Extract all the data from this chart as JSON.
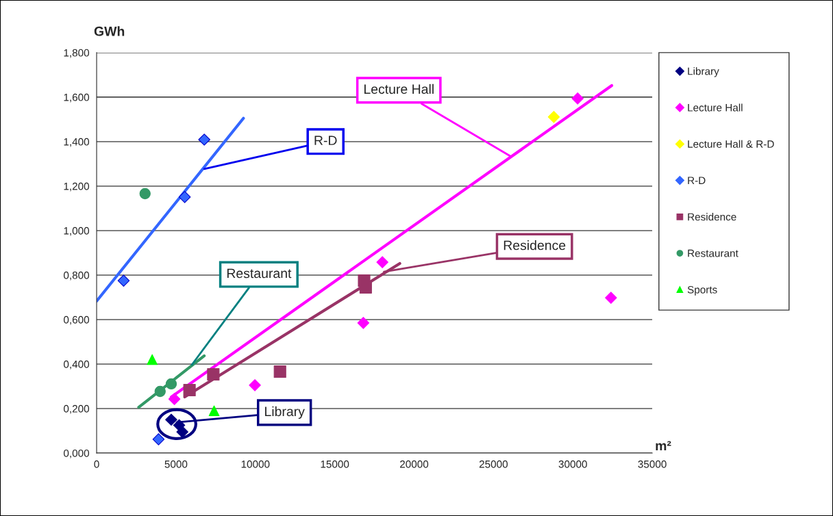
{
  "chart_data": {
    "type": "scatter",
    "xlabel": "m²",
    "ylabel": "GWh",
    "xlim": [
      0,
      35000
    ],
    "xticks": [
      0,
      5000,
      10000,
      15000,
      20000,
      25000,
      30000,
      35000
    ],
    "ylim": [
      0,
      1.8
    ],
    "yticks": [
      {
        "value": 0,
        "label": "0,000"
      },
      {
        "value": 0.2,
        "label": "0,200"
      },
      {
        "value": 0.4,
        "label": "0,400"
      },
      {
        "value": 0.6,
        "label": "0,600"
      },
      {
        "value": 0.8,
        "label": "0,800"
      },
      {
        "value": 1.0,
        "label": "1,000"
      },
      {
        "value": 1.2,
        "label": "1,200"
      },
      {
        "value": 1.4,
        "label": "1,400"
      },
      {
        "value": 1.6,
        "label": "1,600"
      },
      {
        "value": 1.8,
        "label": "1,800"
      }
    ],
    "grid": "y",
    "legend": "right",
    "series": [
      {
        "name": "Library",
        "color": "#000080",
        "marker": "diamond",
        "x": [
          4700,
          5200,
          5400
        ],
        "values": [
          0.15,
          0.125,
          0.095
        ]
      },
      {
        "name": "Lecture Hall",
        "color": "#ff00ff",
        "marker": "diamond",
        "x": [
          4900,
          9970,
          16800,
          18000,
          30300,
          32400
        ],
        "values": [
          0.243,
          0.305,
          0.585,
          0.858,
          1.594,
          0.698
        ]
      },
      {
        "name": "Lecture Hall & R-D",
        "color": "#ffff00",
        "marker": "diamond",
        "x": [
          28800
        ],
        "values": [
          1.511
        ]
      },
      {
        "name": "R-D",
        "color": "#3366ff",
        "marker": "diamond",
        "x": [
          1700,
          3900,
          5550,
          6780
        ],
        "values": [
          0.775,
          0.062,
          1.151,
          1.409
        ]
      },
      {
        "name": "Residence",
        "color": "#993366",
        "marker": "square",
        "x": [
          5850,
          7350,
          11550,
          16850,
          16950
        ],
        "values": [
          0.283,
          0.354,
          0.366,
          0.775,
          0.745
        ]
      },
      {
        "name": "Restaurant",
        "color": "#339966",
        "marker": "circle",
        "x": [
          3050,
          4000,
          4700
        ],
        "values": [
          1.166,
          0.277,
          0.311
        ]
      },
      {
        "name": "Sports",
        "color": "#00ff00",
        "marker": "triangle",
        "x": [
          3500,
          7400
        ],
        "values": [
          0.42,
          0.19
        ]
      },
      {
        "type": "line",
        "color": "#3366ff",
        "marker": "none",
        "x": [
          0,
          9250
        ],
        "values": [
          0.683,
          1.505
        ]
      },
      {
        "type": "line",
        "color": "#339966",
        "marker": "none",
        "x": [
          2650,
          6780
        ],
        "values": [
          0.206,
          0.437
        ]
      },
      {
        "type": "line",
        "color": "#ff00ff",
        "marker": "none",
        "x": [
          4700,
          32450
        ],
        "values": [
          0.252,
          1.652
        ]
      },
      {
        "type": "line",
        "color": "#993366",
        "marker": "none",
        "x": [
          5550,
          19100
        ],
        "values": [
          0.252,
          0.852
        ]
      }
    ],
    "annotations": [
      {
        "text": "Lecture Hall",
        "x": 26050,
        "y": 1.335
      },
      {
        "text": "R-D",
        "x": 6780,
        "y": 1.277
      },
      {
        "text": "Restaurant",
        "x": 6000,
        "y": 0.397
      },
      {
        "text": "Residence",
        "x": 18100,
        "y": 0.815
      },
      {
        "text": "Library",
        "x": 5050,
        "y": 0.138
      }
    ]
  }
}
